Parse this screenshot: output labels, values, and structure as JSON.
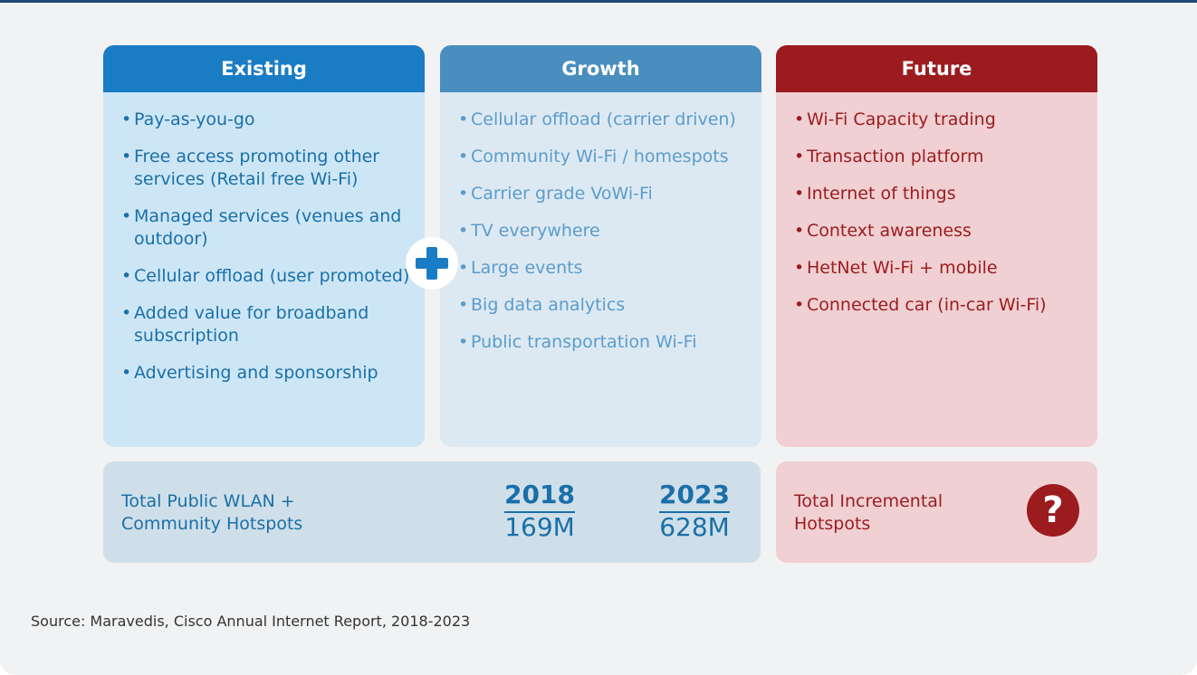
{
  "columns": [
    {
      "title": "Existing",
      "items": [
        "Pay-as-you-go",
        "Free access promoting other services (Retail free Wi-Fi)",
        "Managed services (venues and outdoor)",
        "Cellular offload (user promoted)",
        "Added value for broadband subscription",
        "Advertising and sponsorship"
      ]
    },
    {
      "title": "Growth",
      "items": [
        "Cellular offload (carrier driven)",
        "Community Wi-Fi / homespots",
        "Carrier grade VoWi-Fi",
        "TV everywhere",
        "Large events",
        "Big data analytics",
        "Public transportation Wi-Fi"
      ]
    },
    {
      "title": "Future",
      "items": [
        "Wi-Fi Capacity trading",
        "Transaction platform",
        "Internet of things",
        "Context awareness",
        "HetNet Wi-Fi + mobile",
        "Connected car (in-car Wi-Fi)"
      ]
    }
  ],
  "totals": {
    "label": "Total Public WLAN + Community Hotspots",
    "stats": [
      {
        "year": "2018",
        "value": "169M"
      },
      {
        "year": "2023",
        "value": "628M"
      }
    ]
  },
  "future_total": {
    "label": "Total Incremental Hotspots",
    "icon": "?"
  },
  "source": "Source: Maravedis, Cisco Annual Internet Report, 2018-2023"
}
